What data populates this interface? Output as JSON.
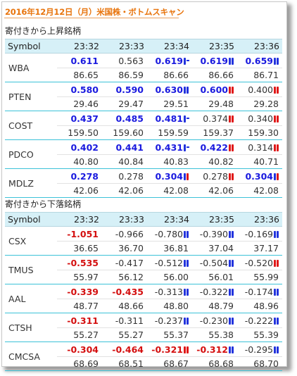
{
  "page": {
    "title": "2016年12月12日（月）米国株・ボトムスキャン"
  },
  "sections": [
    {
      "title": "寄付きから上昇銘柄",
      "headers": [
        "Symbol",
        "23:32",
        "23:33",
        "23:34",
        "23:35",
        "23:36"
      ],
      "rows": [
        {
          "symbol": "WBA",
          "changes": [
            {
              "v": "0.611",
              "c": "blue",
              "i": "none"
            },
            {
              "v": "0.563",
              "c": "plain",
              "i": "none"
            },
            {
              "v": "0.619",
              "c": "blue",
              "i": "dash"
            },
            {
              "v": "0.619",
              "c": "blue",
              "i": "pair"
            },
            {
              "v": "0.659",
              "c": "blue",
              "i": "pair"
            }
          ],
          "prices": [
            "86.65",
            "86.59",
            "86.66",
            "86.66",
            "86.71"
          ]
        },
        {
          "symbol": "PTEN",
          "changes": [
            {
              "v": "0.580",
              "c": "blue",
              "i": "none"
            },
            {
              "v": "0.590",
              "c": "blue",
              "i": "none"
            },
            {
              "v": "0.630",
              "c": "blue",
              "i": "pair"
            },
            {
              "v": "0.600",
              "c": "blue",
              "i": "red2"
            },
            {
              "v": "0.400",
              "c": "plain",
              "i": "red2"
            }
          ],
          "prices": [
            "29.46",
            "29.47",
            "29.51",
            "29.48",
            "29.28"
          ]
        },
        {
          "symbol": "COST",
          "changes": [
            {
              "v": "0.437",
              "c": "blue",
              "i": "none"
            },
            {
              "v": "0.485",
              "c": "blue",
              "i": "none"
            },
            {
              "v": "0.481",
              "c": "blue",
              "i": "dash"
            },
            {
              "v": "0.374",
              "c": "plain",
              "i": "red2"
            },
            {
              "v": "0.340",
              "c": "plain",
              "i": "red2"
            }
          ],
          "prices": [
            "159.50",
            "159.60",
            "159.59",
            "159.37",
            "159.30"
          ]
        },
        {
          "symbol": "PDCO",
          "changes": [
            {
              "v": "0.402",
              "c": "blue",
              "i": "none"
            },
            {
              "v": "0.441",
              "c": "blue",
              "i": "none"
            },
            {
              "v": "0.431",
              "c": "blue",
              "i": "dash"
            },
            {
              "v": "0.422",
              "c": "blue",
              "i": "red2"
            },
            {
              "v": "0.314",
              "c": "plain",
              "i": "red2"
            }
          ],
          "prices": [
            "40.80",
            "40.84",
            "40.83",
            "40.82",
            "40.71"
          ]
        },
        {
          "symbol": "MDLZ",
          "changes": [
            {
              "v": "0.278",
              "c": "blue",
              "i": "none"
            },
            {
              "v": "0.278",
              "c": "plain",
              "i": "none"
            },
            {
              "v": "0.304",
              "c": "blue",
              "i": "split"
            },
            {
              "v": "0.278",
              "c": "plain",
              "i": "red2"
            },
            {
              "v": "0.304",
              "c": "blue",
              "i": "split"
            }
          ],
          "prices": [
            "42.06",
            "42.06",
            "42.08",
            "42.06",
            "42.08"
          ]
        }
      ]
    },
    {
      "title": "寄付きから下落銘柄",
      "headers": [
        "Symbol",
        "23:32",
        "23:33",
        "23:34",
        "23:35",
        "23:36"
      ],
      "rows": [
        {
          "symbol": "CSX",
          "changes": [
            {
              "v": "-1.051",
              "c": "red",
              "i": "none"
            },
            {
              "v": "-0.966",
              "c": "plain",
              "i": "none"
            },
            {
              "v": "-0.780",
              "c": "plain",
              "i": "pair"
            },
            {
              "v": "-0.390",
              "c": "plain",
              "i": "pair"
            },
            {
              "v": "-0.169",
              "c": "plain",
              "i": "pair"
            }
          ],
          "prices": [
            "36.65",
            "36.70",
            "36.81",
            "37.04",
            "37.17"
          ]
        },
        {
          "symbol": "TMUS",
          "changes": [
            {
              "v": "-0.535",
              "c": "red",
              "i": "none"
            },
            {
              "v": "-0.417",
              "c": "plain",
              "i": "none"
            },
            {
              "v": "-0.512",
              "c": "plain",
              "i": "pair"
            },
            {
              "v": "-0.504",
              "c": "plain",
              "i": "pair"
            },
            {
              "v": "-0.520",
              "c": "plain",
              "i": "red2"
            }
          ],
          "prices": [
            "55.97",
            "56.12",
            "56.00",
            "56.01",
            "55.99"
          ]
        },
        {
          "symbol": "AAL",
          "changes": [
            {
              "v": "-0.339",
              "c": "red",
              "i": "none"
            },
            {
              "v": "-0.435",
              "c": "red",
              "i": "none"
            },
            {
              "v": "-0.313",
              "c": "plain",
              "i": "pair"
            },
            {
              "v": "-0.322",
              "c": "plain",
              "i": "pair"
            },
            {
              "v": "-0.174",
              "c": "plain",
              "i": "pair"
            }
          ],
          "prices": [
            "48.77",
            "48.66",
            "48.80",
            "48.79",
            "48.96"
          ]
        },
        {
          "symbol": "CTSH",
          "changes": [
            {
              "v": "-0.311",
              "c": "red",
              "i": "none"
            },
            {
              "v": "-0.311",
              "c": "plain",
              "i": "none"
            },
            {
              "v": "-0.237",
              "c": "plain",
              "i": "pair"
            },
            {
              "v": "-0.230",
              "c": "plain",
              "i": "pair"
            },
            {
              "v": "-0.222",
              "c": "plain",
              "i": "pair"
            }
          ],
          "prices": [
            "55.27",
            "55.27",
            "55.37",
            "55.38",
            "55.39"
          ]
        },
        {
          "symbol": "CMCSA",
          "changes": [
            {
              "v": "-0.304",
              "c": "red",
              "i": "none"
            },
            {
              "v": "-0.464",
              "c": "red",
              "i": "none"
            },
            {
              "v": "-0.321",
              "c": "red",
              "i": "red2"
            },
            {
              "v": "-0.312",
              "c": "red",
              "i": "pair"
            },
            {
              "v": "-0.295",
              "c": "plain",
              "i": "pair"
            }
          ],
          "prices": [
            "68.69",
            "68.51",
            "68.67",
            "68.68",
            "68.70"
          ]
        }
      ]
    }
  ],
  "colors": {
    "up": "#1a1adf",
    "down": "#d40f0f",
    "header_bg": "#d6f0f7",
    "title": "#e8740c",
    "row_divider": "#3cc2d8"
  }
}
